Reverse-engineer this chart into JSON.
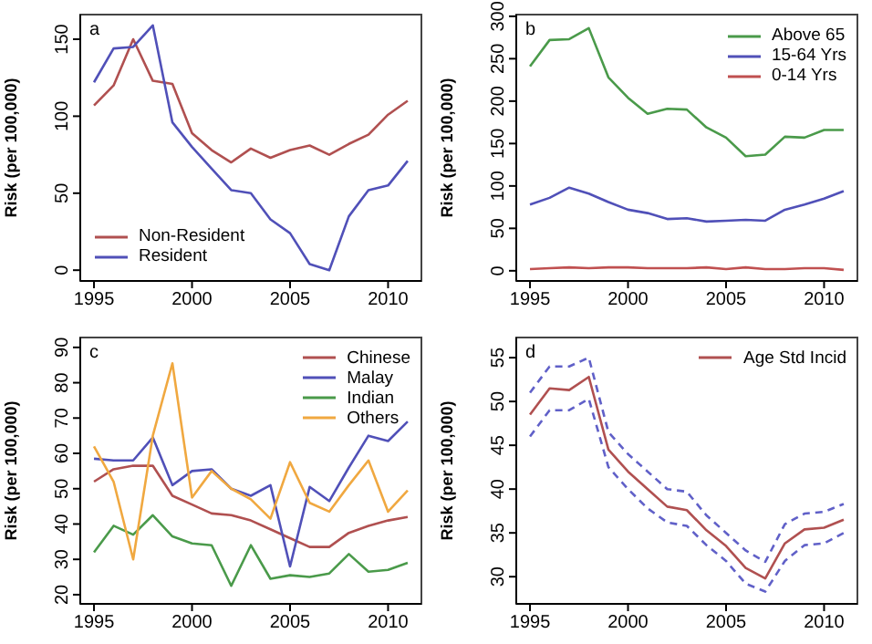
{
  "chart_data": [
    {
      "type": "line",
      "annotations": [
        "a"
      ],
      "ylabel": "Risk (per 100,000)",
      "x": [
        1995,
        1996,
        1997,
        1998,
        1999,
        2000,
        2001,
        2002,
        2003,
        2004,
        2005,
        2006,
        2007,
        2008,
        2009,
        2010,
        2011
      ],
      "xlim": [
        1994.3,
        2011.7
      ],
      "xticks": [
        1995,
        2000,
        2005,
        2010
      ],
      "ylim": [
        -7,
        166
      ],
      "yticks": [
        0,
        50,
        100,
        150
      ],
      "grid": false,
      "legend": "bottom left",
      "line_style": "solid",
      "marker": "none",
      "series": [
        {
          "name": "Non-Resident",
          "color": "#b05050",
          "values": [
            107,
            120,
            150,
            123,
            121,
            89,
            78,
            70,
            79,
            73,
            78,
            81,
            75,
            82,
            88,
            101,
            110
          ]
        },
        {
          "name": "Resident",
          "color": "#5050b8",
          "values": [
            122,
            144,
            145,
            159,
            96,
            80,
            66,
            52,
            50,
            33,
            24,
            4,
            0,
            35,
            52,
            55,
            71
          ]
        }
      ]
    },
    {
      "type": "line",
      "annotations": [
        "b"
      ],
      "ylabel": "Risk (per 100,000)",
      "x": [
        1995,
        1996,
        1997,
        1998,
        1999,
        2000,
        2001,
        2002,
        2003,
        2004,
        2005,
        2006,
        2007,
        2008,
        2009,
        2010,
        2011
      ],
      "xlim": [
        1994.3,
        2011.7
      ],
      "xticks": [
        1995,
        2000,
        2005,
        2010
      ],
      "ylim": [
        -12,
        302
      ],
      "yticks": [
        0,
        50,
        100,
        150,
        200,
        250,
        300
      ],
      "grid": false,
      "legend": "top right",
      "line_style": "solid",
      "marker": "none",
      "series": [
        {
          "name": "Above 65",
          "color": "#4a9a4a",
          "values": [
            241,
            272,
            273,
            286,
            228,
            204,
            185,
            191,
            190,
            169,
            157,
            135,
            137,
            158,
            157,
            166,
            166
          ]
        },
        {
          "name": "15-64 Yrs",
          "color": "#5050b8",
          "values": [
            78,
            86,
            98,
            91,
            81,
            72,
            68,
            61,
            62,
            58,
            59,
            60,
            59,
            72,
            78,
            85,
            94
          ]
        },
        {
          "name": "0-14 Yrs",
          "color": "#c05050",
          "values": [
            2,
            3,
            4,
            3,
            4,
            4,
            3,
            3,
            3,
            4,
            2,
            4,
            2,
            2,
            3,
            3,
            1
          ]
        }
      ]
    },
    {
      "type": "line",
      "annotations": [
        "c"
      ],
      "ylabel": "Risk (per 100,000)",
      "x": [
        1995,
        1996,
        1997,
        1998,
        1999,
        2000,
        2001,
        2002,
        2003,
        2004,
        2005,
        2006,
        2007,
        2008,
        2009,
        2010,
        2011
      ],
      "xlim": [
        1994.3,
        2011.7
      ],
      "xticks": [
        1995,
        2000,
        2005,
        2010
      ],
      "ylim": [
        17.4,
        92.8
      ],
      "yticks": [
        20,
        30,
        40,
        50,
        60,
        70,
        80,
        90
      ],
      "grid": false,
      "legend": "top right",
      "line_style": "solid",
      "marker": "none",
      "series": [
        {
          "name": "Chinese",
          "color": "#b05050",
          "values": [
            52,
            55.5,
            56.5,
            56.5,
            48,
            45.5,
            43,
            42.5,
            41,
            38.5,
            36,
            33.5,
            33.5,
            37.5,
            39.5,
            41,
            42
          ]
        },
        {
          "name": "Malay",
          "color": "#5050b8",
          "values": [
            58.5,
            58,
            58,
            64.5,
            51,
            55,
            55.5,
            50,
            48,
            51,
            28,
            50.5,
            46.5,
            56,
            65,
            63.5,
            69
          ]
        },
        {
          "name": "Indian",
          "color": "#4a9a4a",
          "values": [
            32,
            39.5,
            37,
            42.5,
            36.5,
            34.5,
            34,
            22.5,
            34,
            24.5,
            25.5,
            25,
            26,
            31.5,
            26.5,
            27,
            29
          ]
        },
        {
          "name": "Others",
          "color": "#f0a840",
          "values": [
            62,
            52,
            30,
            65,
            85.5,
            47.5,
            55,
            50,
            47,
            41.5,
            57.5,
            46,
            43.5,
            51,
            58,
            43.5,
            49.5
          ]
        }
      ]
    },
    {
      "type": "line",
      "annotations": [
        "d"
      ],
      "ylabel": "Risk (per 100,000)",
      "x": [
        1995,
        1996,
        1997,
        1998,
        1999,
        2000,
        2001,
        2002,
        2003,
        2004,
        2005,
        2006,
        2007,
        2008,
        2009,
        2010,
        2011
      ],
      "xlim": [
        1994.3,
        2011.7
      ],
      "xticks": [
        1995,
        2000,
        2005,
        2010
      ],
      "ylim": [
        26.9,
        57.3
      ],
      "yticks": [
        30,
        35,
        40,
        45,
        50,
        55
      ],
      "grid": false,
      "legend": "top right",
      "line_style": "solid",
      "marker": "none",
      "series": [
        {
          "name": "Age Std Incid",
          "color": "#b05050",
          "values": [
            48.5,
            51.5,
            51.3,
            52.8,
            44.5,
            42,
            40,
            38,
            37.6,
            35.3,
            33.5,
            31,
            29.8,
            33.8,
            35.4,
            35.6,
            36.5
          ]
        },
        {
          "color": "#6060c8",
          "line_style": "dashed",
          "values": [
            51,
            54,
            54,
            55,
            46.5,
            44,
            42,
            40,
            39.7,
            37,
            35,
            33,
            31.7,
            36,
            37.2,
            37.4,
            38.3
          ]
        },
        {
          "color": "#6060c8",
          "line_style": "dashed",
          "values": [
            46,
            49,
            49,
            50.3,
            42.5,
            40,
            37.8,
            36.2,
            35.8,
            33.6,
            31.8,
            29.2,
            28.3,
            31.8,
            33.6,
            33.8,
            35
          ]
        }
      ]
    }
  ]
}
